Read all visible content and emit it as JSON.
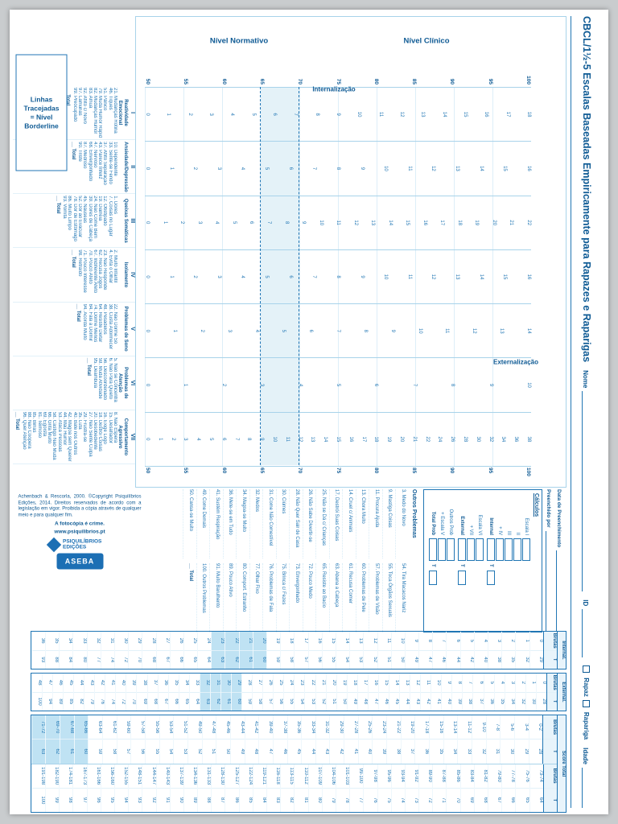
{
  "page": {
    "title": "CBCL/1½-5 Escalas Baseadas Empiricamente para Rapazes e Raparigas",
    "fields": {
      "nome": "Nome",
      "id": "ID",
      "rapaz": "Rapaz",
      "rapariga": "Rapariga",
      "idade": "Idade"
    }
  },
  "legend": {
    "line1": "Linhas Tracejadas",
    "line2": "= Nível Borderline"
  },
  "chart": {
    "region_labels": {
      "clinical": "Nível Clínico",
      "normative": "Nível Normativo"
    },
    "group_labels": {
      "internal": "Internalização",
      "external": "Externalização"
    },
    "t_axis": [
      "100",
      "95",
      "90",
      "85",
      "80",
      "75",
      "70",
      "65",
      "60",
      "55",
      "50"
    ],
    "total_label": "Total",
    "columns": [
      {
        "numeral": "I",
        "name": "Reatividade Emocional",
        "ladder": [
          18,
          17,
          16,
          15,
          14,
          13,
          12,
          11,
          10,
          9,
          8,
          7,
          6,
          5,
          4,
          3,
          2,
          1,
          0
        ],
        "items": [
          "21. Mudanças Rotina",
          "46. Tiques",
          "51. Pânico",
          "79. Muda Humor Rápido",
          "82. Mudanças Humor",
          "83. Amua",
          "92. Aflito c/ Novo",
          "97. Lamúrias",
          "99. Preocupado"
        ]
      },
      {
        "numeral": "II",
        "name": "Ansiedade/Depressão",
        "ladder": [
          16,
          15,
          14,
          13,
          12,
          11,
          10,
          9,
          8,
          7,
          6,
          5,
          4,
          3,
          2,
          1,
          0
        ],
        "items": [
          "10. Dependente",
          "33. Sente-se Ferido",
          "37. Aflito Separação",
          "43. Parece Infeliz",
          "47. Nervoso",
          "68. Envergonhado",
          "87. Medroso",
          "90. Triste"
        ]
      },
      {
        "numeral": "III",
        "name": "Queixas Somáticas",
        "ladder": [
          22,
          21,
          20,
          19,
          18,
          17,
          16,
          15,
          14,
          13,
          12,
          11,
          10,
          9,
          8,
          7,
          6,
          5,
          4,
          3,
          2,
          1,
          0
        ],
        "items": [
          "1. Dores",
          "7. Coisas no Lugar",
          "12. Obstipado",
          "19. Diarreia",
          "24. Não Come Bem",
          "39. Dores de Cabeça",
          "45. Náuseas",
          "52. Dor ao Evacuar",
          "78. Dor de Estômago",
          "86. Muito Limpo",
          "93. Vomita"
        ]
      },
      {
        "numeral": "IV",
        "name": "Isolamento",
        "ladder": [
          16,
          15,
          14,
          13,
          12,
          11,
          10,
          9,
          8,
          7,
          6,
          5,
          4,
          3,
          2,
          1,
          0
        ],
        "items": [
          "2. Muito Infantil",
          "4. Evita o Olhar",
          "23. Não Responde",
          "62. Recusa Jogos",
          "67. Indiferente Afeto",
          "70. Pouco Afeto",
          "71. Pouco Interesse",
          "98. Retraído"
        ]
      },
      {
        "numeral": "V",
        "name": "Problemas de Sono",
        "ladder": [
          14,
          13,
          12,
          11,
          10,
          9,
          8,
          7,
          6,
          5,
          4,
          3,
          2,
          1,
          0
        ],
        "items": [
          "22. Não Dorme Só",
          "38. Custa Adormecer",
          "48. Pesadelos",
          "64. Resiste Deitar",
          "74. Dorme Menos",
          "84. Fala a Dormir",
          "94. Acorda Muito"
        ]
      },
      {
        "numeral": "VI",
        "name": "Problemas de Atenção",
        "ladder": [
          10,
          9,
          8,
          7,
          6,
          5,
          4,
          3,
          2,
          1,
          0
        ],
        "items": [
          "5. Não se Concentra",
          "6. Não Pára Quieto",
          "56. Descoordenado",
          "59. Muda Atividade",
          "95. Deambula"
        ]
      },
      {
        "numeral": "VII",
        "name": "Comportamento Agressivo",
        "ladder": [
          38,
          36,
          34,
          32,
          30,
          28,
          26,
          24,
          22,
          21,
          20,
          19,
          18,
          17,
          16,
          15,
          14,
          13,
          12,
          11,
          10,
          9,
          8,
          7,
          6,
          5,
          4,
          3,
          2,
          1,
          0
        ],
        "items": [
          "8. Não Espera",
          "15. Desafiador",
          "16. Exige Logo",
          "18. Destrói Coisas",
          "20. Desobediente",
          "27. Não Sente Culpa",
          "29. Frustra-se",
          "35. Luta",
          "40. Bate nos Outros",
          "42. Magoa sem Querer",
          "44. Mau Humor",
          "53. Ataca Pessoas",
          "58. Castigo Não Muda",
          "66. Grita Muito",
          "69. Egoísta",
          "81. Teimoso",
          "85. Birras",
          "88. Não Coopera",
          "96. Quer Atenção"
        ]
      }
    ]
  },
  "right_panel": {
    "data_label": "Data de Preenchimento",
    "filled_by_label": "Preenchido por",
    "calculos": {
      "title": "Cálculos",
      "sections": [
        {
          "rows": [
            "Escala I",
            "II",
            "III",
            "+ IV"
          ],
          "result": "Internal",
          "t": "T"
        },
        {
          "rows": [
            "Escala VI",
            "+ VII"
          ],
          "result": "External",
          "t": "T"
        },
        {
          "rows": [
            "Outros Prob",
            "+ Escala V"
          ],
          "result": "Total Prob",
          "t": "T"
        }
      ]
    },
    "outros": {
      "title": "Outros Problemas",
      "col1": [
        "3. Medo do Novo",
        "9. Mastiga Coisas",
        "11. Procura Ajuda",
        "13. Chora Muito",
        "14. Cruel c/ Animais",
        "17. Destrói Suas Coisas",
        "25. Não se Dá c/ Crianças",
        "26. Não Sabe Divertir-se",
        "28. Não Quer Sair de Casa",
        "30. Ciúmes",
        "31. Come Não Comestível",
        "32. Medos",
        "34. Magoa-se Muito",
        "36. Mete-se em Tudo",
        "41. Sustém Respiração",
        "49. Come Demais",
        "50. Cansa-se Muito"
      ],
      "col2": [
        "54. Tira Macacos Nariz",
        "55. Toca Órgãos Sexuais",
        "57. Problemas de Visão",
        "60. Problemas de Pele",
        "61. Recusa Comer",
        "63. Abana a Cabeça",
        "65. Resiste ao Bacio",
        "72. Pouco Medo",
        "73. Envergonhado",
        "75. Brinca c/ Fezes",
        "76. Problemas de Fala",
        "77. Olhar Fixo",
        "80. Comport. Estranho",
        "89. Pouco Ativo",
        "91. Muito Barulhento",
        "100. Outros Problemas"
      ],
      "total": "Total"
    }
  },
  "publisher": {
    "logo1": "PSIQUILÍBRIOS EDIÇÕES",
    "logo2": "ASEBA",
    "text": "Achenbach & Rescorla, 2000. ©Copyright Psiquilíbrios Edições, 2014. Direitos reservados de acordo com a legislação em vigor. Proibida a cópia através de qualquer meio e para qualquer fim.",
    "crime": "A fotocópia é crime.",
    "site": "www.psiquilibrios.pt"
  },
  "tables": {
    "groups": [
      {
        "name": "Internal.",
        "sub": [
          "Brutas",
          "T"
        ],
        "pairs": [
          [
            [
              0,
              29
            ],
            [
              1,
              32
            ],
            [
              2,
              35
            ],
            [
              3,
              38
            ],
            [
              4,
              40
            ],
            [
              5,
              42
            ],
            [
              6,
              44
            ],
            [
              7,
              46
            ],
            [
              8,
              47
            ],
            [
              9,
              49
            ],
            [
              10,
              50
            ],
            [
              11,
              51
            ],
            [
              12,
              52
            ],
            [
              13,
              53
            ],
            [
              14,
              54
            ],
            [
              15,
              55
            ],
            [
              16,
              56
            ],
            [
              17,
              57
            ],
            [
              18,
              58
            ],
            [
              19,
              59
            ],
            [
              20,
              60
            ],
            [
              21,
              61
            ],
            [
              22,
              62
            ],
            [
              23,
              63
            ],
            [
              24,
              64
            ],
            [
              25,
              65
            ],
            [
              26,
              66
            ],
            [
              27,
              67
            ],
            [
              28,
              68
            ],
            [
              29,
              70
            ],
            [
              30,
              72
            ],
            [
              31,
              74
            ],
            [
              32,
              77
            ],
            [
              33,
              80
            ],
            [
              34,
              84
            ],
            [
              35,
              88
            ],
            [
              36,
              93
            ]
          ]
        ]
      },
      {
        "name": "External.",
        "sub": [
          "Brutas",
          "T"
        ],
        "pairs": [
          [
            [
              0,
              28
            ],
            [
              1,
              30
            ],
            [
              2,
              32
            ],
            [
              3,
              34
            ],
            [
              4,
              35
            ],
            [
              5,
              36
            ],
            [
              6,
              37
            ],
            [
              7,
              38
            ],
            [
              8,
              39
            ],
            [
              9,
              40
            ],
            [
              10,
              41
            ],
            [
              11,
              42
            ],
            [
              12,
              43
            ],
            [
              13,
              44
            ],
            [
              14,
              45
            ],
            [
              15,
              46
            ],
            [
              16,
              47
            ],
            [
              17,
              48
            ],
            [
              18,
              49
            ],
            [
              19,
              50
            ],
            [
              20,
              51
            ],
            [
              21,
              52
            ],
            [
              22,
              53
            ],
            [
              23,
              54
            ],
            [
              24,
              55
            ],
            [
              25,
              56
            ],
            [
              26,
              57
            ],
            [
              27,
              58
            ],
            [
              28,
              59
            ],
            [
              29,
              60
            ],
            [
              30,
              61
            ],
            [
              31,
              62
            ],
            [
              32,
              63
            ],
            [
              33,
              64
            ],
            [
              34,
              65
            ],
            [
              35,
              66
            ],
            [
              36,
              67
            ],
            [
              37,
              68
            ],
            [
              38,
              69
            ],
            [
              39,
              70
            ],
            [
              40,
              72
            ],
            [
              41,
              74
            ],
            [
              42,
              76
            ],
            [
              43,
              79
            ],
            [
              44,
              82
            ],
            [
              45,
              85
            ],
            [
              46,
              89
            ],
            [
              47,
              94
            ],
            [
              48,
              100
            ]
          ]
        ]
      },
      {
        "name": "Score Total",
        "sub": [
          "Brutas",
          "T"
        ],
        "pairs": [
          [
            [
              "0-2",
              28
            ],
            [
              "3-4",
              29
            ],
            [
              "5-6",
              30
            ],
            [
              "7-8",
              31
            ],
            [
              "9-10",
              32
            ],
            [
              "11-12",
              33
            ],
            [
              "13-14",
              34
            ],
            [
              "15-16",
              35
            ],
            [
              "17-18",
              36
            ],
            [
              "19-20",
              37
            ],
            [
              "21-22",
              38
            ],
            [
              "23-24",
              39
            ],
            [
              "25-26",
              40
            ],
            [
              "27-28",
              41
            ],
            [
              "29-30",
              42
            ],
            [
              "31-32",
              43
            ],
            [
              "33-34",
              44
            ],
            [
              "35-36",
              45
            ],
            [
              "37-38",
              46
            ],
            [
              "39-40",
              47
            ],
            [
              "41-42",
              48
            ],
            [
              "43-44",
              49
            ],
            [
              "45-46",
              50
            ],
            [
              "47-48",
              51
            ],
            [
              "49-50",
              52
            ],
            [
              "51-52",
              53
            ],
            [
              "53-54",
              54
            ],
            [
              "55-56",
              55
            ],
            [
              "57-58",
              56
            ],
            [
              "59-60",
              57
            ],
            [
              "61-62",
              58
            ],
            [
              "63-64",
              59
            ],
            [
              "65-66",
              60
            ],
            [
              "67-68",
              61
            ],
            [
              "69-70",
              62
            ],
            [
              "71-72",
              63
            ]
          ],
          [
            [
              "73-74",
              64
            ],
            [
              "75-76",
              65
            ],
            [
              "77-78",
              66
            ],
            [
              "79-80",
              67
            ],
            [
              "81-82",
              68
            ],
            [
              "83-84",
              69
            ],
            [
              "85-86",
              70
            ],
            [
              "87-88",
              71
            ],
            [
              "89-90",
              72
            ],
            [
              "91-92",
              73
            ],
            [
              "93-94",
              74
            ],
            [
              "95-96",
              75
            ],
            [
              "97-98",
              76
            ],
            [
              "99-100",
              77
            ],
            [
              "101-103",
              78
            ],
            [
              "104-106",
              79
            ],
            [
              "107-109",
              80
            ],
            [
              "110-112",
              81
            ],
            [
              "113-115",
              82
            ],
            [
              "116-118",
              83
            ],
            [
              "119-121",
              84
            ],
            [
              "122-124",
              85
            ],
            [
              "125-127",
              86
            ],
            [
              "128-130",
              87
            ],
            [
              "131-133",
              88
            ],
            [
              "134-136",
              89
            ],
            [
              "137-139",
              90
            ],
            [
              "140-143",
              91
            ],
            [
              "144-147",
              92
            ],
            [
              "148-151",
              93
            ],
            [
              "152-155",
              94
            ],
            [
              "156-160",
              95
            ],
            [
              "161-166",
              96
            ],
            [
              "167-173",
              97
            ],
            [
              "174-181",
              98
            ],
            [
              "182-190",
              99
            ],
            [
              "191-198",
              100
            ]
          ]
        ]
      }
    ]
  }
}
